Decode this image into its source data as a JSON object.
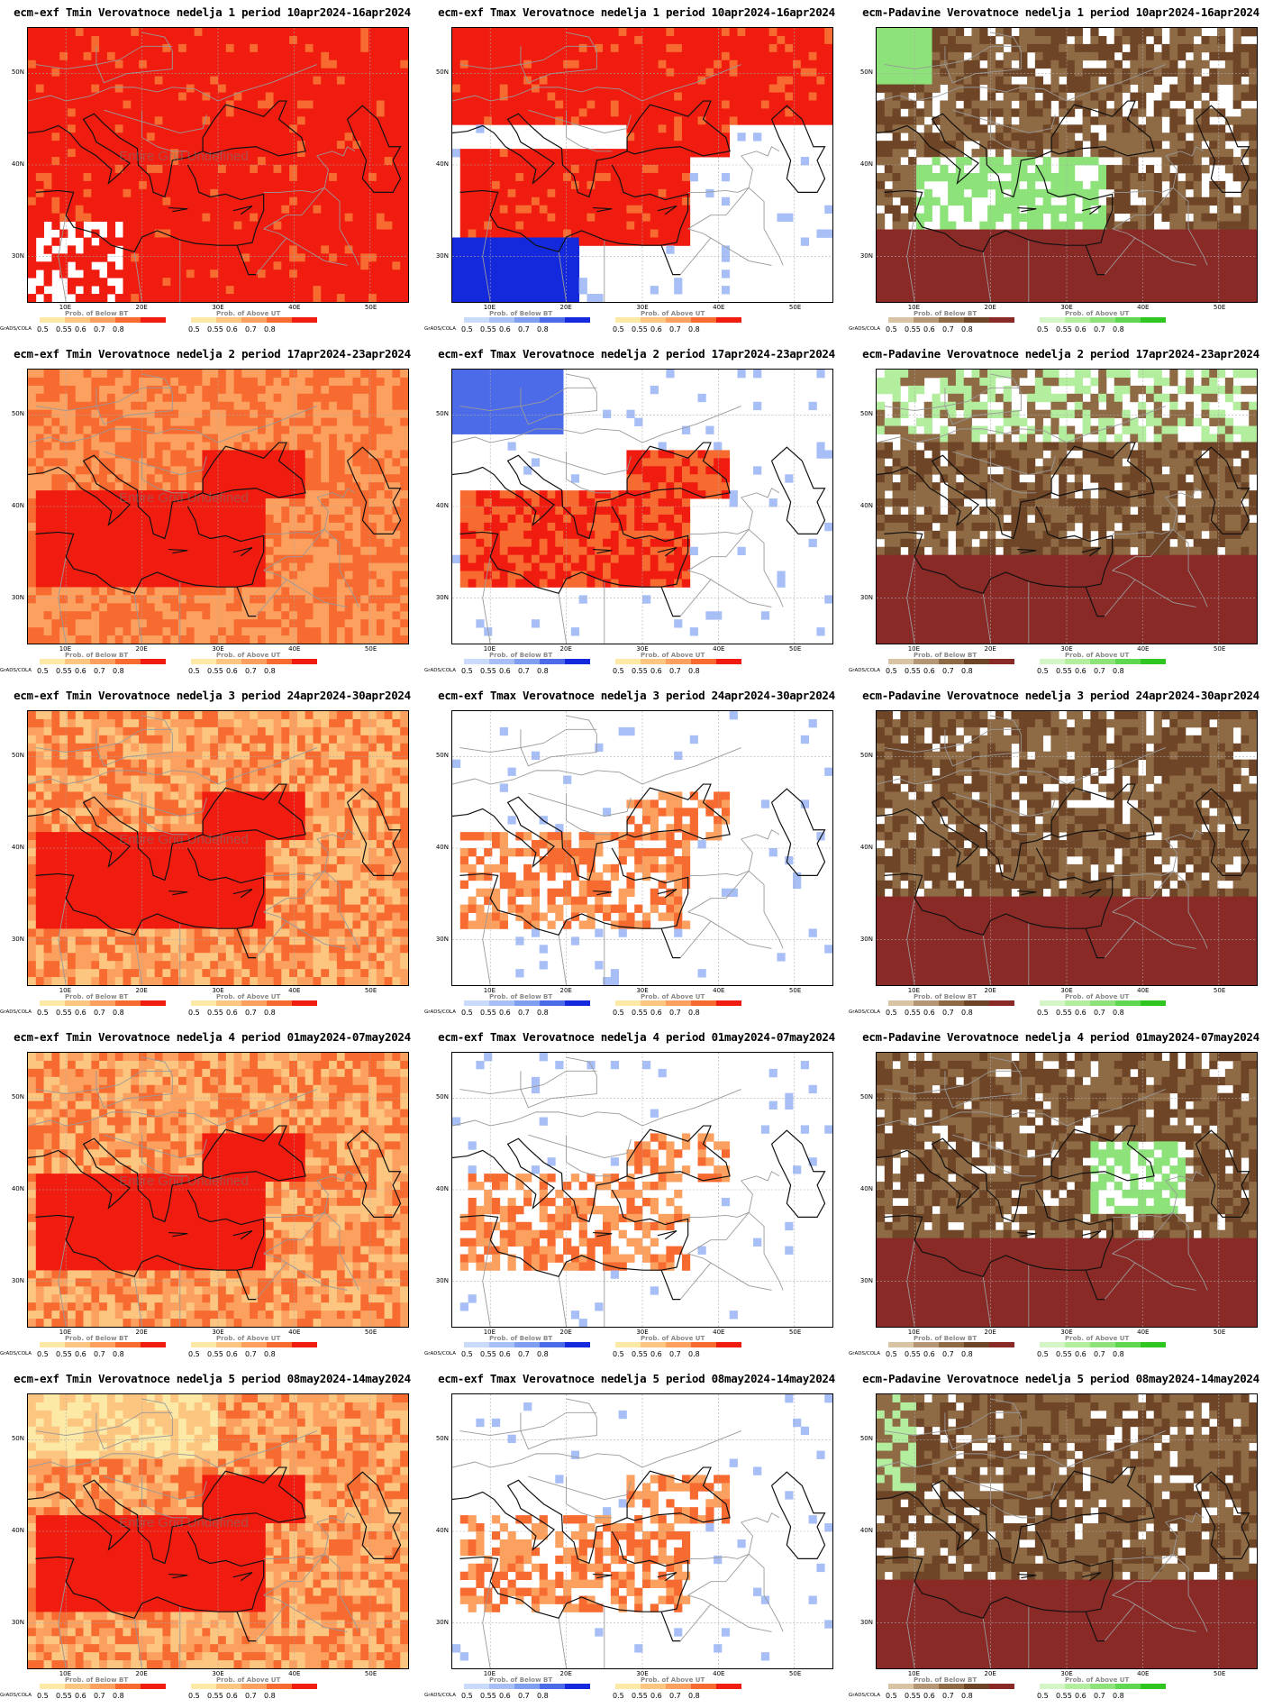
{
  "colorbars": {
    "below_title": "Prob. of Below BT",
    "above_title": "Prob. of Above UT",
    "grads_label": "GrADS/COLA",
    "tick_labels": [
      "0.5",
      "0.55",
      "0.6",
      "0.7",
      "0.8"
    ],
    "palettes": {
      "tmin_below": [
        "#fde9a6",
        "#fdc680",
        "#fca060",
        "#f76a30",
        "#f01c10"
      ],
      "tmin_above": [
        "#fde9a6",
        "#fdc680",
        "#fca060",
        "#f76a30",
        "#f01c10"
      ],
      "tmax_below": [
        "#c9dafa",
        "#a7bff6",
        "#7f9ef0",
        "#4c6be8",
        "#1428dc"
      ],
      "tmax_above": [
        "#fde9a6",
        "#fdc680",
        "#fca060",
        "#f76a30",
        "#f01c10"
      ],
      "prec_below": [
        "#d8c3a5",
        "#b49574",
        "#8e6a45",
        "#6e4526",
        "#8a2a26"
      ],
      "prec_above": [
        "#d4f5c6",
        "#b2ee9e",
        "#8de27a",
        "#5fd750",
        "#2fc622"
      ]
    }
  },
  "axes": {
    "lat_labels": [
      "50N",
      "40N",
      "30N"
    ],
    "lon_labels": [
      "10E",
      "20E",
      "30E",
      "40E",
      "50E"
    ]
  },
  "overlay_text": "Entire Grid Undefined",
  "panels": [
    {
      "title": "ecm-exf Tmin Verovatnoce nedelja 1 period 10apr2024-16apr2024",
      "var": "tmin",
      "overlay": true
    },
    {
      "title": "ecm-exf Tmax Verovatnoce nedelja 1 period 10apr2024-16apr2024",
      "var": "tmax",
      "overlay": false
    },
    {
      "title": "ecm-Padavine Verovatnoce nedelja 1 period 10apr2024-16apr2024",
      "var": "prec",
      "overlay": false
    },
    {
      "title": "ecm-exf Tmin Verovatnoce nedelja 2 period 17apr2024-23apr2024",
      "var": "tmin",
      "overlay": true
    },
    {
      "title": "ecm-exf Tmax Verovatnoce nedelja 2 period 17apr2024-23apr2024",
      "var": "tmax",
      "overlay": false
    },
    {
      "title": "ecm-Padavine Verovatnoce nedelja 2 period 17apr2024-23apr2024",
      "var": "prec",
      "overlay": false
    },
    {
      "title": "ecm-exf Tmin Verovatnoce nedelja 3 period 24apr2024-30apr2024",
      "var": "tmin",
      "overlay": true
    },
    {
      "title": "ecm-exf Tmax Verovatnoce nedelja 3 period 24apr2024-30apr2024",
      "var": "tmax",
      "overlay": false
    },
    {
      "title": "ecm-Padavine Verovatnoce nedelja 3 period 24apr2024-30apr2024",
      "var": "prec",
      "overlay": false
    },
    {
      "title": "ecm-exf Tmin Verovatnoce nedelja 4 period 01may2024-07may2024",
      "var": "tmin",
      "overlay": true
    },
    {
      "title": "ecm-exf Tmax Verovatnoce nedelja 4 period 01may2024-07may2024",
      "var": "tmax",
      "overlay": false
    },
    {
      "title": "ecm-Padavine Verovatnoce nedelja 4 period 01may2024-07may2024",
      "var": "prec",
      "overlay": false
    },
    {
      "title": "ecm-exf Tmin Verovatnoce nedelja 5 period 08may2024-14may2024",
      "var": "tmin",
      "overlay": true
    },
    {
      "title": "ecm-exf Tmax Verovatnoce nedelja 5 period 08may2024-14may2024",
      "var": "tmax",
      "overlay": false
    },
    {
      "title": "ecm-Padavine Verovatnoce nedelja 5 period 08may2024-14may2024",
      "var": "prec",
      "overlay": false
    }
  ]
}
